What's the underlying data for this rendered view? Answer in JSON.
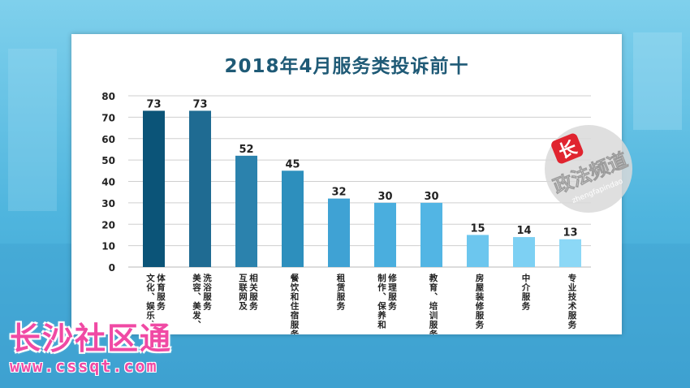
{
  "chart_data": {
    "type": "bar",
    "title": "2018年4月服务类投诉前十",
    "xlabel": "",
    "ylabel": "",
    "ylim": [
      0,
      80
    ],
    "yticks": [
      0,
      10,
      20,
      30,
      40,
      50,
      60,
      70,
      80
    ],
    "grid": true,
    "legend": "none",
    "categories": [
      "文化、娱乐、体育服务",
      "美容、美发、洗浴服务",
      "互联网及相关服务",
      "餐饮和住宿服务",
      "租赁服务",
      "制作、保养和修理服务",
      "教育、培训服务",
      "房屋装修服务",
      "中介服务",
      "专业技术服务"
    ],
    "category_lines": [
      [
        "体育服务",
        "文化、娱乐、"
      ],
      [
        "洗浴服务",
        "美容、美发、"
      ],
      [
        "相关服务",
        "互联网及"
      ],
      [
        "餐饮和住宿服务"
      ],
      [
        "租赁服务"
      ],
      [
        "修理服务",
        "制作、保养和"
      ],
      [
        "教育、培训服务"
      ],
      [
        "房屋装修服务"
      ],
      [
        "中介服务"
      ],
      [
        "专业技术服务"
      ]
    ],
    "values": [
      73,
      73,
      52,
      45,
      32,
      30,
      30,
      15,
      14,
      13
    ],
    "bar_colors": [
      "#0b5478",
      "#1f6b92",
      "#2b82ad",
      "#2d8fbd",
      "#3fa2d4",
      "#4aaede",
      "#52b5e4",
      "#6cc6ee",
      "#7dd0f3",
      "#8cd8f6"
    ]
  },
  "stamp": {
    "text": "政法频道",
    "char": "长",
    "pinyin": "zhengfapindao"
  },
  "watermark": {
    "title": "长沙社区通",
    "url": "www.cssqt.com"
  }
}
